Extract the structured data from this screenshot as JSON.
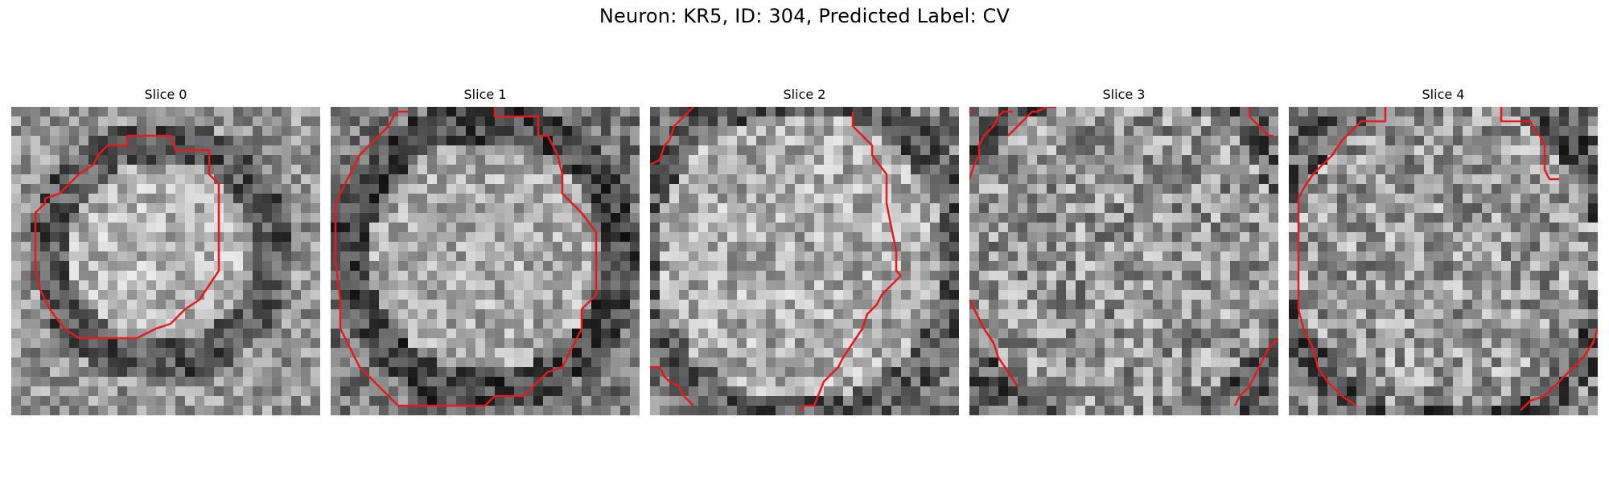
{
  "figure": {
    "title": "Neuron: KR5, ID: 304, Predicted Label: CV"
  },
  "panels": [
    {
      "title": "Slice 0"
    },
    {
      "title": "Slice 1"
    },
    {
      "title": "Slice 2"
    },
    {
      "title": "Slice 3"
    },
    {
      "title": "Slice 4"
    }
  ],
  "colors": {
    "contour": "#e41a1c",
    "background": "#ffffff"
  }
}
